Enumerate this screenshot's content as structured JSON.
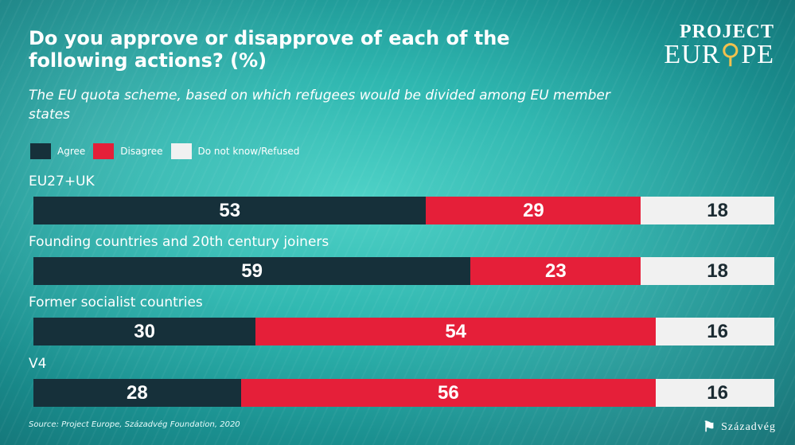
{
  "header": {
    "title": "Do you approve or disapprove of each of the following actions? (%)",
    "subtitle": "The EU quota scheme, based on which refugees would be divided among EU member states"
  },
  "logo": {
    "project_europe": "PROJECT EUROPE",
    "szazadveg": "Századvég"
  },
  "source": "Source: Project Europe, Századvég Foundation, 2020",
  "colors": {
    "agree": "#16303a",
    "disagree": "#e51f39",
    "do_not_know": "#f1f1f1",
    "background": "#2fb7b0"
  },
  "chart_data": {
    "type": "bar",
    "orientation": "horizontal",
    "stacked": true,
    "title": "Do you approve or disapprove of each of the following actions? (%)",
    "subtitle": "The EU quota scheme, based on which refugees would be divided among EU member states",
    "legend": {
      "placement": "top-left"
    },
    "categories": [
      "EU27+UK",
      "Founding countries and 20th century joiners",
      "Former socialist countries",
      "V4"
    ],
    "series": [
      {
        "name": "Agree",
        "values": [
          53,
          59,
          30,
          28
        ]
      },
      {
        "name": "Disagree",
        "values": [
          29,
          23,
          54,
          56
        ]
      },
      {
        "name": "Do not know/Refused",
        "values": [
          18,
          18,
          16,
          16
        ]
      }
    ],
    "xlim": [
      0,
      100
    ]
  }
}
